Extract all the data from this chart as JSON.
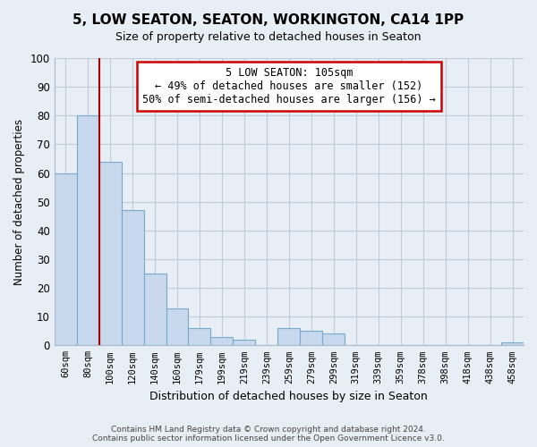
{
  "title": "5, LOW SEATON, SEATON, WORKINGTON, CA14 1PP",
  "subtitle": "Size of property relative to detached houses in Seaton",
  "xlabel": "Distribution of detached houses by size in Seaton",
  "ylabel": "Number of detached properties",
  "bar_color": "#c8d8ed",
  "bar_edge_color": "#7aaaca",
  "background_color": "#e8eef5",
  "grid_color": "#c0ccd8",
  "categories": [
    "60sqm",
    "80sqm",
    "100sqm",
    "120sqm",
    "140sqm",
    "160sqm",
    "179sqm",
    "199sqm",
    "219sqm",
    "239sqm",
    "259sqm",
    "279sqm",
    "299sqm",
    "319sqm",
    "339sqm",
    "359sqm",
    "378sqm",
    "398sqm",
    "418sqm",
    "438sqm",
    "458sqm"
  ],
  "values": [
    60,
    80,
    64,
    47,
    25,
    13,
    6,
    3,
    2,
    0,
    6,
    5,
    4,
    0,
    0,
    0,
    0,
    0,
    0,
    0,
    1
  ],
  "ylim": [
    0,
    100
  ],
  "yticks": [
    0,
    10,
    20,
    30,
    40,
    50,
    60,
    70,
    80,
    90,
    100
  ],
  "vline_x": 1.5,
  "vline_color": "#aa0000",
  "annotation_text": "5 LOW SEATON: 105sqm\n← 49% of detached houses are smaller (152)\n50% of semi-detached houses are larger (156) →",
  "annotation_box_color": "white",
  "annotation_box_edge": "#cc0000",
  "footer_line1": "Contains HM Land Registry data © Crown copyright and database right 2024.",
  "footer_line2": "Contains public sector information licensed under the Open Government Licence v3.0."
}
